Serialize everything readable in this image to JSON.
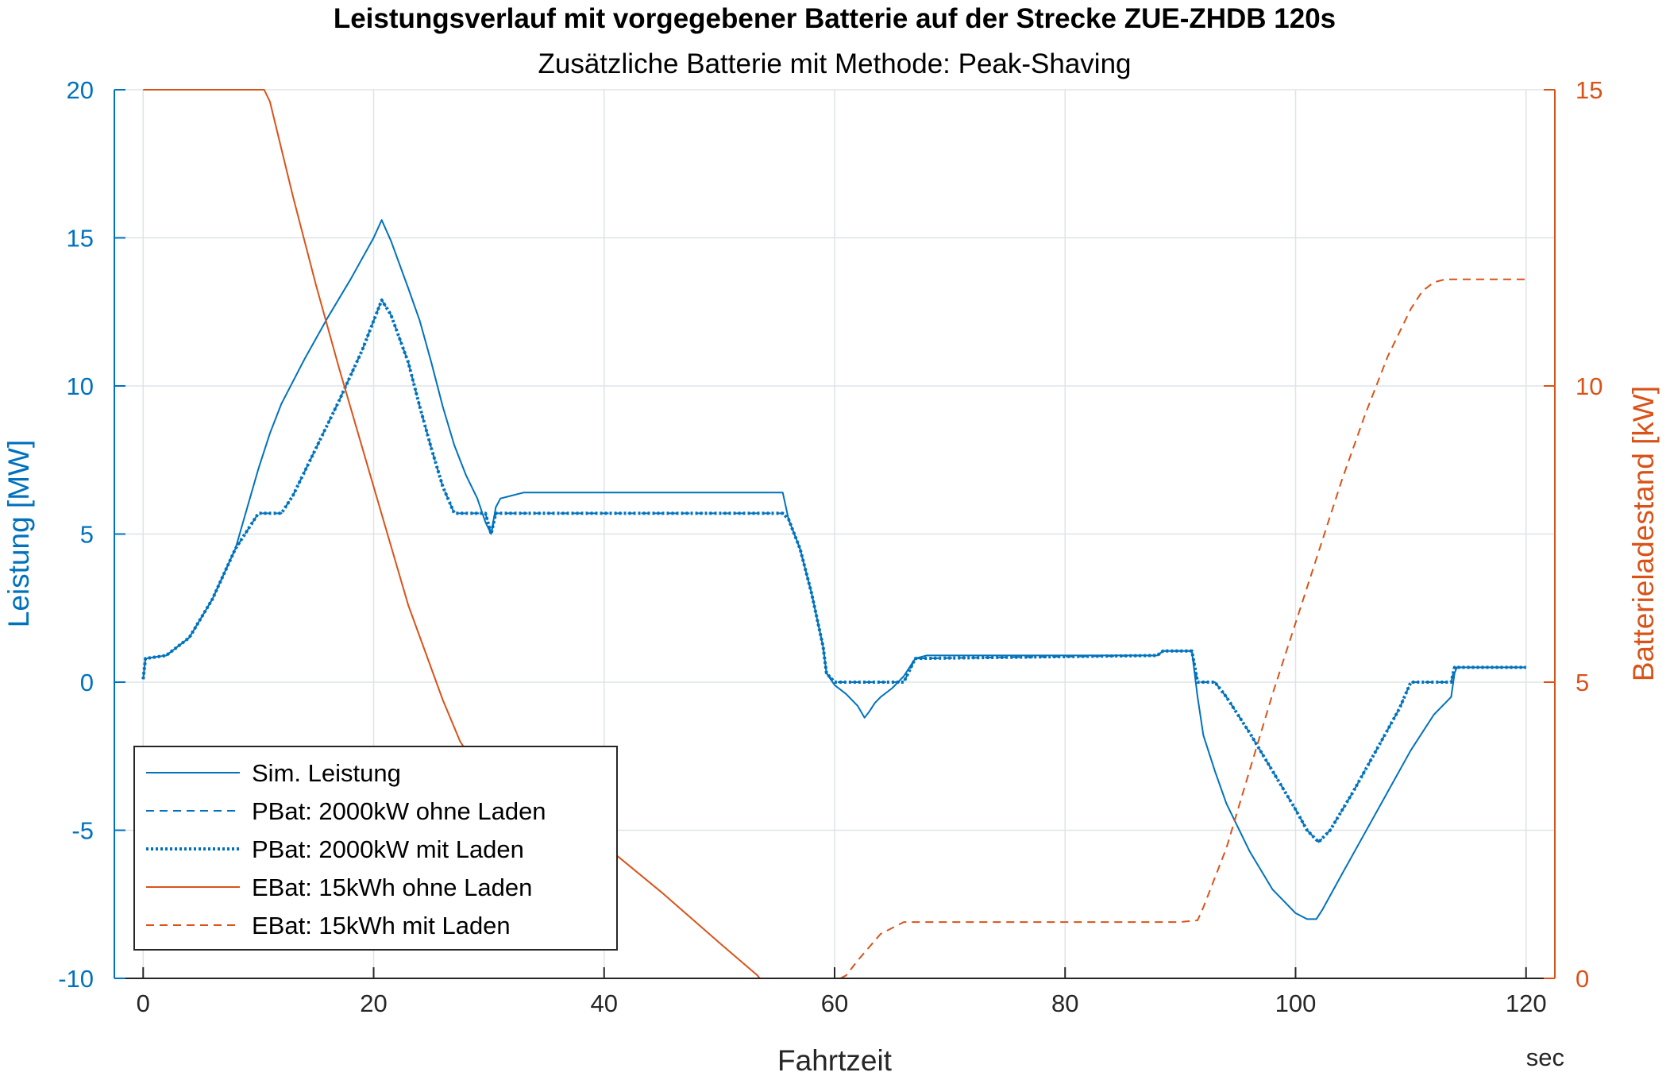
{
  "chart_data": {
    "type": "line",
    "title": "Leistungsverlauf mit vorgegebener Batterie auf der Strecke ZUE-ZHDB 120s",
    "subtitle": "Zusätzliche Batterie mit Methode: Peak-Shaving",
    "xlabel": "Fahrtzeit",
    "xunit": "sec",
    "ylabel_left": "Leistung [MW]",
    "ylabel_right": "Batterieladestand [kW]",
    "xlim": [
      -2.5,
      122.5
    ],
    "xticks": [
      0,
      20,
      40,
      60,
      80,
      100,
      120
    ],
    "ylim_left": [
      -10,
      20
    ],
    "yticks_left": [
      -10,
      -5,
      0,
      5,
      10,
      15,
      20
    ],
    "ylim_right": [
      0,
      15
    ],
    "yticks_right": [
      0,
      5,
      10,
      15
    ],
    "grid": true,
    "legend_position": "bottom-left",
    "colors": {
      "blue": "#0072BD",
      "orange": "#D95319"
    },
    "series": [
      {
        "name": "Sim. Leistung",
        "axis": "left",
        "color": "#0072BD",
        "style": "solid",
        "x": [
          0,
          0.2,
          2,
          4,
          6,
          8,
          10,
          11,
          12,
          14,
          16,
          18,
          20,
          20.7,
          21.5,
          23,
          24,
          25,
          26,
          27,
          28,
          29,
          29.7,
          30.2,
          30.6,
          31,
          32,
          33,
          35,
          45,
          55,
          55.5,
          56,
          57,
          58,
          59,
          59.3,
          60,
          61,
          62,
          62.6,
          63,
          63.5,
          64,
          65,
          66,
          67,
          68,
          80,
          88,
          88.5,
          91,
          91.5,
          92,
          93,
          94,
          96,
          98,
          100,
          101,
          101.8,
          102.3,
          104,
          106,
          108,
          110,
          112,
          113.5,
          113.8,
          114,
          120
        ],
        "y": [
          0.1,
          0.8,
          0.9,
          1.5,
          2.8,
          4.5,
          7.2,
          8.4,
          9.4,
          10.9,
          12.3,
          13.6,
          15,
          15.6,
          14.9,
          13.3,
          12.2,
          10.8,
          9.3,
          8.0,
          7.0,
          6.2,
          5.4,
          5.0,
          5.9,
          6.2,
          6.3,
          6.4,
          6.4,
          6.4,
          6.4,
          6.4,
          5.5,
          4.5,
          3.0,
          1.2,
          0.3,
          -0.1,
          -0.4,
          -0.8,
          -1.2,
          -1.0,
          -0.7,
          -0.5,
          -0.2,
          0.2,
          0.8,
          0.9,
          0.9,
          0.9,
          1.05,
          1.05,
          -0.5,
          -1.8,
          -3.0,
          -4.1,
          -5.7,
          -7.0,
          -7.8,
          -8.0,
          -8.0,
          -7.7,
          -6.5,
          -5.1,
          -3.7,
          -2.3,
          -1.1,
          -0.5,
          0.3,
          0.5,
          0.5
        ]
      },
      {
        "name": "PBat: 2000kW ohne Laden",
        "axis": "left",
        "color": "#0072BD",
        "style": "dashed",
        "x": [
          0,
          0.2,
          2,
          4,
          6,
          8,
          10,
          12,
          13,
          15,
          17,
          19,
          20.7,
          21.5,
          23,
          24,
          25,
          26,
          27,
          29,
          29.7,
          30.2,
          30.6,
          31,
          55,
          55.5,
          56,
          57,
          58,
          59,
          59.3,
          60,
          66,
          67,
          88,
          88.5,
          91,
          91.5,
          93,
          94,
          96,
          98,
          100,
          101,
          102,
          103,
          105,
          107,
          109,
          110,
          113.5,
          113.8,
          120
        ],
        "y": [
          0.1,
          0.8,
          0.9,
          1.5,
          2.8,
          4.5,
          5.7,
          5.7,
          6.3,
          7.9,
          9.5,
          11.2,
          12.9,
          12.4,
          10.8,
          9.3,
          7.9,
          6.6,
          5.7,
          5.7,
          5.7,
          5.0,
          5.7,
          5.7,
          5.7,
          5.7,
          5.5,
          4.5,
          3.0,
          1.2,
          0.3,
          0,
          0,
          0.8,
          0.9,
          1.05,
          1.05,
          0,
          0,
          -0.5,
          -1.7,
          -3.0,
          -4.3,
          -5.0,
          -5.4,
          -5.0,
          -3.7,
          -2.3,
          -0.9,
          0,
          0,
          0.5,
          0.5
        ]
      },
      {
        "name": "PBat: 2000kW mit Laden",
        "axis": "left",
        "color": "#0072BD",
        "style": "dotted",
        "x": [
          0,
          0.2,
          2,
          4,
          6,
          8,
          10,
          12,
          13,
          15,
          17,
          19,
          20.7,
          21.5,
          23,
          24,
          25,
          26,
          27,
          29,
          29.7,
          30.2,
          30.6,
          31,
          55,
          55.5,
          56,
          57,
          58,
          59,
          59.3,
          60,
          66,
          67,
          88,
          88.5,
          91,
          91.5,
          93,
          94,
          96,
          98,
          100,
          101,
          102,
          103,
          105,
          107,
          109,
          110,
          113.5,
          113.8,
          120
        ],
        "y": [
          0.1,
          0.8,
          0.9,
          1.5,
          2.8,
          4.5,
          5.7,
          5.7,
          6.3,
          7.9,
          9.5,
          11.2,
          12.9,
          12.4,
          10.8,
          9.3,
          7.9,
          6.6,
          5.7,
          5.7,
          5.7,
          5.0,
          5.7,
          5.7,
          5.7,
          5.7,
          5.5,
          4.5,
          3.0,
          1.2,
          0.3,
          0,
          0,
          0.8,
          0.9,
          1.05,
          1.05,
          0,
          0,
          -0.5,
          -1.7,
          -3.0,
          -4.3,
          -5.0,
          -5.4,
          -5.0,
          -3.7,
          -2.3,
          -0.9,
          0,
          0,
          0.5,
          0.5
        ]
      },
      {
        "name": "EBat: 15kWh ohne Laden",
        "axis": "right",
        "color": "#D95319",
        "style": "solid",
        "x": [
          0,
          10.5,
          11,
          12,
          13,
          15,
          17,
          20,
          23,
          26,
          27.5,
          28,
          29,
          30,
          31,
          32,
          34,
          36,
          40,
          45,
          50,
          53.3,
          53.5,
          120
        ],
        "y": [
          15,
          15,
          14.8,
          14.0,
          13.2,
          11.7,
          10.3,
          8.3,
          6.3,
          4.7,
          4.0,
          3.85,
          3.75,
          3.75,
          3.75,
          3.65,
          3.4,
          2.95,
          2.25,
          1.45,
          0.6,
          0.05,
          0,
          0
        ]
      },
      {
        "name": "EBat: 15kWh mit Laden",
        "axis": "right",
        "color": "#D95319",
        "style": "dashed",
        "x": [
          60.5,
          61,
          62,
          64,
          66,
          70,
          80,
          90,
          91.5,
          92,
          94,
          96,
          98,
          100,
          102,
          104,
          106,
          108,
          110,
          111,
          112,
          113,
          114,
          116,
          120
        ],
        "y": [
          0,
          0.05,
          0.3,
          0.75,
          0.95,
          0.95,
          0.95,
          0.95,
          0.98,
          1.2,
          2.2,
          3.5,
          4.8,
          6.0,
          7.2,
          8.4,
          9.5,
          10.5,
          11.3,
          11.6,
          11.75,
          11.8,
          11.8,
          11.8,
          11.8
        ]
      }
    ]
  }
}
